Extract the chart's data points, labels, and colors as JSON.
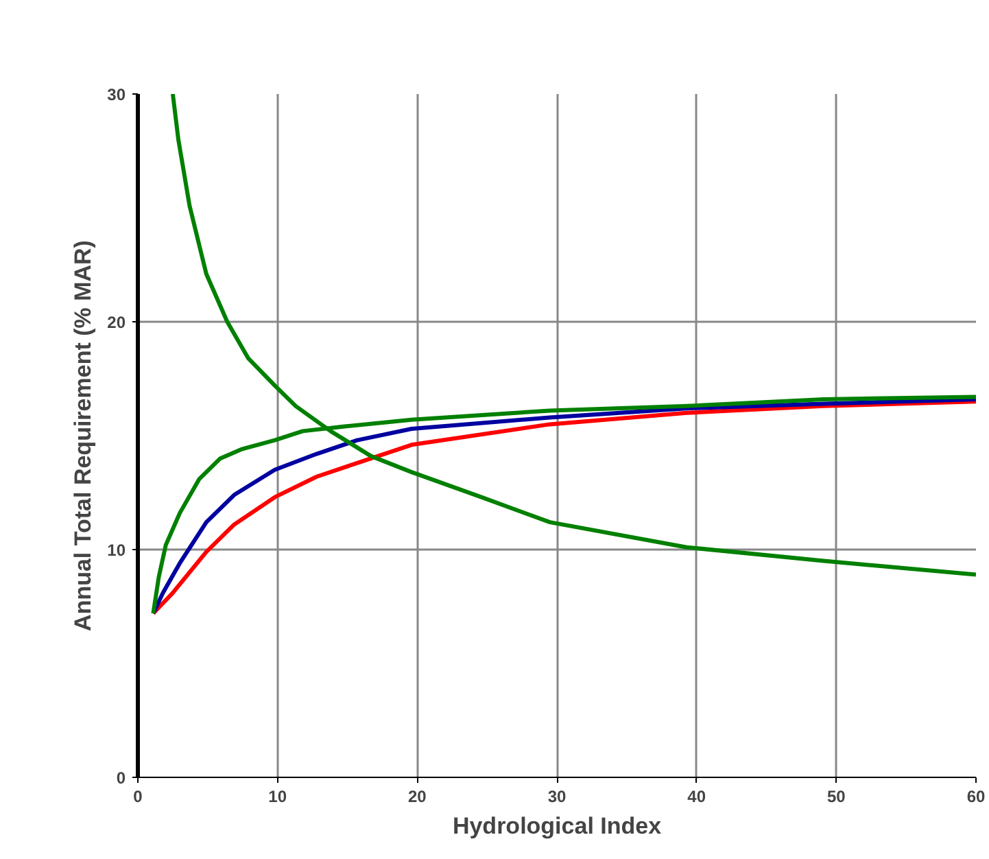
{
  "chart_data": {
    "type": "line",
    "xlabel": "Hydrological Index",
    "ylabel": "Annual Total Requirement (% MAR)",
    "xlim": [
      0,
      60
    ],
    "ylim": [
      0,
      30
    ],
    "xticks": [
      0,
      10,
      20,
      30,
      40,
      50,
      60
    ],
    "yticks": [
      0,
      10,
      20,
      30
    ],
    "grid": true,
    "marker": "none",
    "line_style": "solid",
    "series": [
      {
        "color": "#ff0000",
        "x": [
          1.1,
          2.5,
          4.9,
          6.9,
          9.8,
          12.8,
          15.7,
          19.6,
          29.5,
          39.3,
          49.1,
          60
        ],
        "values": [
          7.2,
          8.1,
          9.9,
          11.1,
          12.3,
          13.2,
          13.8,
          14.6,
          15.5,
          16.0,
          16.3,
          16.5
        ]
      },
      {
        "color": "#0000a0",
        "x": [
          1.1,
          1.8,
          3,
          4.9,
          6.9,
          9.8,
          12.8,
          15.7,
          19.6,
          29.5,
          39.3,
          49.1,
          60
        ],
        "values": [
          7.2,
          8.1,
          9.4,
          11.2,
          12.4,
          13.5,
          14.2,
          14.8,
          15.3,
          15.8,
          16.2,
          16.4,
          16.6
        ]
      },
      {
        "color": "#008000",
        "x": [
          1.1,
          1.5,
          2,
          3,
          4.4,
          5.9,
          7.4,
          9.8,
          11.8,
          14.7,
          19.6,
          29.5,
          39.3,
          49.1,
          60
        ],
        "values": [
          7.2,
          8.8,
          10.2,
          11.6,
          13.1,
          14.0,
          14.4,
          14.8,
          15.2,
          15.4,
          15.7,
          16.1,
          16.3,
          16.6,
          16.7
        ]
      },
      {
        "color": "#008000",
        "x": [
          2.5,
          2.9,
          3.7,
          4.9,
          6.4,
          7.9,
          9.8,
          11.3,
          13.8,
          16.7,
          19.6,
          24.6,
          29.5,
          39.3,
          49.1,
          60
        ],
        "values": [
          30,
          28.0,
          25.1,
          22.1,
          20.0,
          18.4,
          17.2,
          16.3,
          15.2,
          14.1,
          13.4,
          12.3,
          11.2,
          10.1,
          9.5,
          8.9
        ]
      }
    ]
  }
}
